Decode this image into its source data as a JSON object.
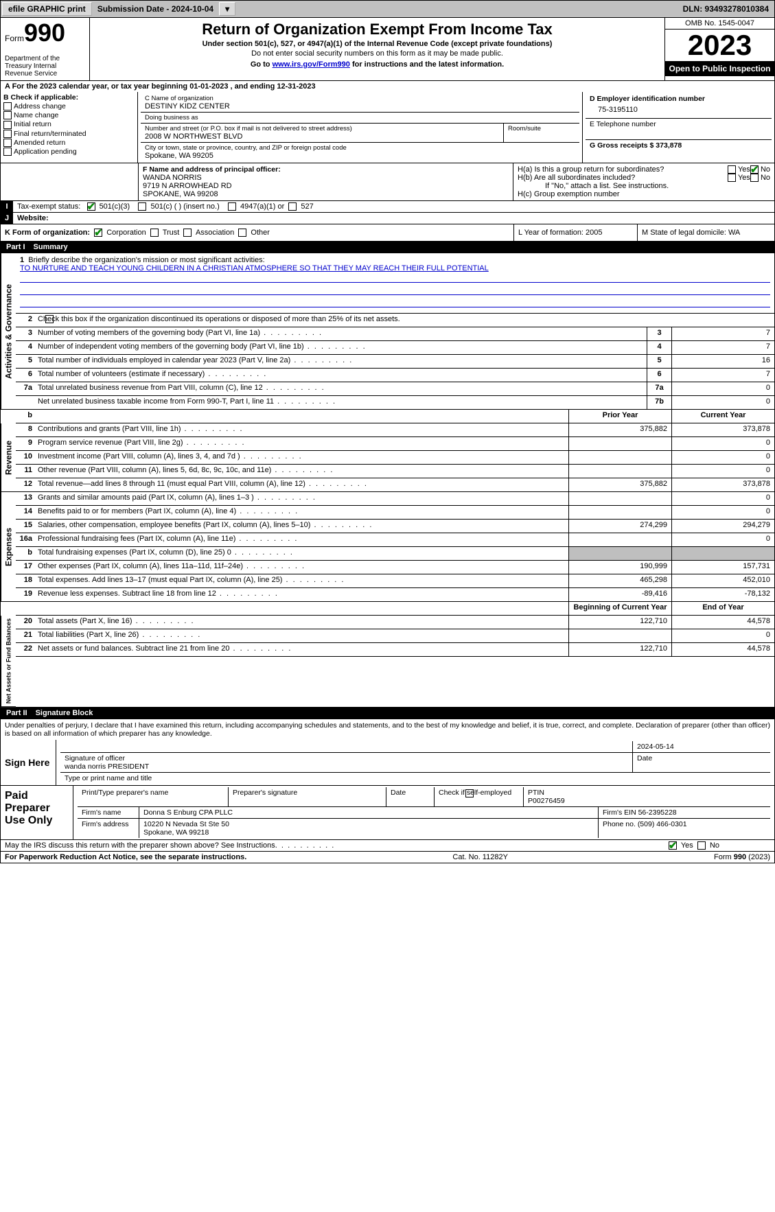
{
  "colors": {
    "link": "#0000cc",
    "check": "#0a8a0a",
    "gray_cell": "#bfbfbf",
    "black": "#000000",
    "white": "#ffffff",
    "topbar_bg": "#c0c0c0"
  },
  "topbar": {
    "efile": "efile GRAPHIC print",
    "submission_label": "Submission Date - 2024-10-04",
    "dln": "DLN: 93493278010384"
  },
  "header": {
    "form_word": "Form",
    "form_num": "990",
    "dept": "Department of the Treasury\nInternal Revenue Service",
    "title": "Return of Organization Exempt From Income Tax",
    "sub": "Under section 501(c), 527, or 4947(a)(1) of the Internal Revenue Code (except private foundations)",
    "ssn": "Do not enter social security numbers on this form as it may be made public.",
    "goto_pre": "Go to ",
    "goto_link": "www.irs.gov/Form990",
    "goto_post": " for instructions and the latest information.",
    "omb": "OMB No. 1545-0047",
    "year": "2023",
    "open": "Open to Public Inspection"
  },
  "period": {
    "a": "A For the 2023 calendar year, or tax year beginning 01-01-2023    , and ending 12-31-2023"
  },
  "b": {
    "label": "B Check if applicable:",
    "items": [
      "Address change",
      "Name change",
      "Initial return",
      "Final return/terminated",
      "Amended return",
      "Application pending"
    ]
  },
  "c": {
    "name_lbl": "C Name of organization",
    "name": "DESTINY KIDZ CENTER",
    "dba_lbl": "Doing business as",
    "dba": "",
    "addr_lbl": "Number and street (or P.O. box if mail is not delivered to street address)",
    "room_lbl": "Room/suite",
    "addr": "2008 W NORTHWEST BLVD",
    "city_lbl": "City or town, state or province, country, and ZIP or foreign postal code",
    "city": "Spokane, WA  99205"
  },
  "d": {
    "lbl": "D Employer identification number",
    "val": "75-3195110"
  },
  "e": {
    "lbl": "E Telephone number",
    "val": ""
  },
  "g": {
    "lbl": "G Gross receipts $ 373,878"
  },
  "f": {
    "lbl": "F  Name and address of principal officer:",
    "name": "WANDA NORRIS",
    "addr1": "9719 N ARROWHEAD RD",
    "addr2": "SPOKANE, WA  99208"
  },
  "h": {
    "a": "H(a)  Is this a group return for subordinates?",
    "a_no": true,
    "b": "H(b)  Are all subordinates included?",
    "note": "If \"No,\" attach a list. See instructions.",
    "c": "H(c)  Group exemption number"
  },
  "i": {
    "lab": "I",
    "label": "Tax-exempt status:",
    "opts": [
      "501(c)(3)",
      "501(c) (  ) (insert no.)",
      "4947(a)(1) or",
      "527"
    ],
    "checked": 0
  },
  "j": {
    "lab": "J",
    "label": "Website:",
    "val": ""
  },
  "k": {
    "label": "K Form of organization:",
    "opts": [
      "Corporation",
      "Trust",
      "Association",
      "Other"
    ],
    "checked": 0
  },
  "l": {
    "label": "L Year of formation: 2005"
  },
  "m": {
    "label": "M State of legal domicile: WA"
  },
  "part1": {
    "title": "Part I",
    "name": "Summary"
  },
  "summary": {
    "q1": "Briefly describe the organization's mission or most significant activities:",
    "mission": "TO NURTURE AND TEACH YOUNG CHILDERN IN A CHRISTIAN ATMOSPHERE SO THAT THEY MAY REACH THEIR FULL POTENTIAL",
    "q2": "Check this box       if the organization discontinued its operations or disposed of more than 25% of its net assets.",
    "lines_ag": [
      {
        "n": "3",
        "d": "Number of voting members of the governing body (Part VI, line 1a)",
        "box": "3",
        "v": "7"
      },
      {
        "n": "4",
        "d": "Number of independent voting members of the governing body (Part VI, line 1b)",
        "box": "4",
        "v": "7"
      },
      {
        "n": "5",
        "d": "Total number of individuals employed in calendar year 2023 (Part V, line 2a)",
        "box": "5",
        "v": "16"
      },
      {
        "n": "6",
        "d": "Total number of volunteers (estimate if necessary)",
        "box": "6",
        "v": "7"
      },
      {
        "n": "7a",
        "d": "Total unrelated business revenue from Part VIII, column (C), line 12",
        "box": "7a",
        "v": "0"
      },
      {
        "n": "",
        "d": "Net unrelated business taxable income from Form 990-T, Part I, line 11",
        "box": "7b",
        "v": "0"
      }
    ],
    "col_prior": "Prior Year",
    "col_current": "Current Year",
    "rev": [
      {
        "n": "8",
        "d": "Contributions and grants (Part VIII, line 1h)",
        "p": "375,882",
        "c": "373,878"
      },
      {
        "n": "9",
        "d": "Program service revenue (Part VIII, line 2g)",
        "p": "",
        "c": "0"
      },
      {
        "n": "10",
        "d": "Investment income (Part VIII, column (A), lines 3, 4, and 7d )",
        "p": "",
        "c": "0"
      },
      {
        "n": "11",
        "d": "Other revenue (Part VIII, column (A), lines 5, 6d, 8c, 9c, 10c, and 11e)",
        "p": "",
        "c": "0"
      },
      {
        "n": "12",
        "d": "Total revenue—add lines 8 through 11 (must equal Part VIII, column (A), line 12)",
        "p": "375,882",
        "c": "373,878"
      }
    ],
    "exp": [
      {
        "n": "13",
        "d": "Grants and similar amounts paid (Part IX, column (A), lines 1–3 )",
        "p": "",
        "c": "0"
      },
      {
        "n": "14",
        "d": "Benefits paid to or for members (Part IX, column (A), line 4)",
        "p": "",
        "c": "0"
      },
      {
        "n": "15",
        "d": "Salaries, other compensation, employee benefits (Part IX, column (A), lines 5–10)",
        "p": "274,299",
        "c": "294,279"
      },
      {
        "n": "16a",
        "d": "Professional fundraising fees (Part IX, column (A), line 11e)",
        "p": "",
        "c": "0"
      },
      {
        "n": "b",
        "d": "Total fundraising expenses (Part IX, column (D), line 25) 0",
        "p": "gray",
        "c": "gray"
      },
      {
        "n": "17",
        "d": "Other expenses (Part IX, column (A), lines 11a–11d, 11f–24e)",
        "p": "190,999",
        "c": "157,731"
      },
      {
        "n": "18",
        "d": "Total expenses. Add lines 13–17 (must equal Part IX, column (A), line 25)",
        "p": "465,298",
        "c": "452,010"
      },
      {
        "n": "19",
        "d": "Revenue less expenses. Subtract line 18 from line 12",
        "p": "-89,416",
        "c": "-78,132"
      }
    ],
    "col_begin": "Beginning of Current Year",
    "col_end": "End of Year",
    "net": [
      {
        "n": "20",
        "d": "Total assets (Part X, line 16)",
        "p": "122,710",
        "c": "44,578"
      },
      {
        "n": "21",
        "d": "Total liabilities (Part X, line 26)",
        "p": "",
        "c": "0"
      },
      {
        "n": "22",
        "d": "Net assets or fund balances. Subtract line 21 from line 20",
        "p": "122,710",
        "c": "44,578"
      }
    ],
    "vlabels": {
      "ag": "Activities & Governance",
      "rev": "Revenue",
      "exp": "Expenses",
      "net": "Net Assets or Fund Balances"
    }
  },
  "part2": {
    "title": "Part II",
    "name": "Signature Block"
  },
  "perjury": "Under penalties of perjury, I declare that I have examined this return, including accompanying schedules and statements, and to the best of my knowledge and belief, it is true, correct, and complete. Declaration of preparer (other than officer) is based on all information of which preparer has any knowledge.",
  "sign": {
    "here": "Sign Here",
    "date": "2024-05-14",
    "sig_lbl": "Signature of officer",
    "date_lbl": "Date",
    "name": "wanda norris PRESIDENT",
    "name_lbl": "Type or print name and title"
  },
  "paid": {
    "label": "Paid Preparer Use Only",
    "h1": "Print/Type preparer's name",
    "h2": "Preparer's signature",
    "h3": "Date",
    "h4": "Check       if self-employed",
    "h5": "PTIN",
    "ptin": "P00276459",
    "firm_lbl": "Firm's name",
    "firm": "Donna S Enburg CPA PLLC",
    "ein_lbl": "Firm's EIN",
    "ein": "56-2395228",
    "addr_lbl": "Firm's address",
    "addr1": "10220 N Nevada St Ste 50",
    "addr2": "Spokane, WA  99218",
    "phone_lbl": "Phone no.",
    "phone": "(509) 466-0301"
  },
  "discuss": {
    "q": "May the IRS discuss this return with the preparer shown above? See Instructions.",
    "yes": true
  },
  "footer": {
    "pra": "For Paperwork Reduction Act Notice, see the separate instructions.",
    "cat": "Cat. No. 11282Y",
    "form": "Form 990 (2023)"
  }
}
